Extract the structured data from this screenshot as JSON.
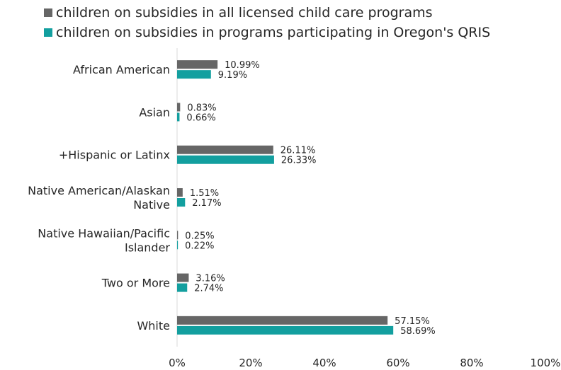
{
  "chart_data": {
    "type": "bar",
    "orientation": "horizontal",
    "categories": [
      "African American",
      "Asian",
      "+Hispanic or Latinx",
      "Native American/Alaskan Native",
      "Native Hawaiian/Pacific Islander",
      "Two or More",
      "White"
    ],
    "category_lines": [
      [
        "African American"
      ],
      [
        "Asian"
      ],
      [
        "+Hispanic or Latinx"
      ],
      [
        "Native American/Alaskan",
        "Native"
      ],
      [
        "Native Hawaiian/Pacific",
        "Islander"
      ],
      [
        "Two or More"
      ],
      [
        "White"
      ]
    ],
    "series": [
      {
        "name": "children on subsidies in all licensed child care programs",
        "color": "#666666",
        "values": [
          10.99,
          0.83,
          26.11,
          1.51,
          0.25,
          3.16,
          57.15
        ],
        "labels": [
          "10.99%",
          "0.83%",
          "26.11%",
          "1.51%",
          "0.25%",
          "3.16%",
          "57.15%"
        ]
      },
      {
        "name": "children on subsidies in programs participating in Oregon's QRIS",
        "color": "#139f9f",
        "values": [
          9.19,
          0.66,
          26.33,
          2.17,
          0.22,
          2.74,
          58.69
        ],
        "labels": [
          "9.19%",
          "0.66%",
          "26.33%",
          "2.17%",
          "0.22%",
          "2.74%",
          "58.69%"
        ]
      }
    ],
    "xlim": [
      0,
      100
    ],
    "xticks": [
      0,
      20,
      40,
      60,
      80,
      100
    ],
    "xtick_labels": [
      "0%",
      "20%",
      "40%",
      "60%",
      "80%",
      "100%"
    ],
    "legend_position": "top",
    "grid": false
  }
}
